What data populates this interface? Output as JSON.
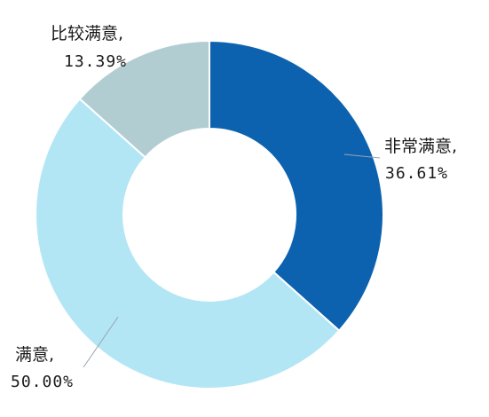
{
  "chart_data": {
    "type": "pie",
    "style": "donut",
    "title": "",
    "slices": [
      {
        "label": "非常满意,",
        "value_text": "36.61%",
        "value": 36.61,
        "color": "#0d62b0"
      },
      {
        "label": "满意,",
        "value_text": "50.00%",
        "value": 50.0,
        "color": "#b3e6f5"
      },
      {
        "label": "比较满意,",
        "value_text": "13.39%",
        "value": 13.39,
        "color": "#b2cdd2"
      }
    ],
    "start_angle_deg": 0,
    "direction": "clockwise",
    "legend": "none",
    "data_labels": "outside with leader lines"
  }
}
